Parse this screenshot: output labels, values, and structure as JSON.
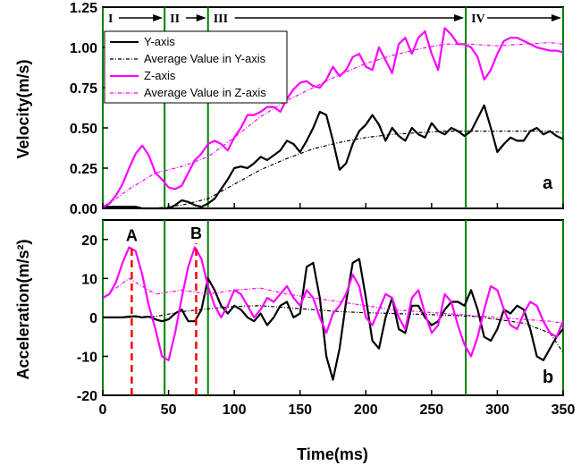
{
  "chart_data": [
    {
      "panel": "a",
      "type": "line",
      "panel_label": "a",
      "ylabel": "Velocity(m/s)",
      "xlim": [
        0,
        350
      ],
      "ylim": [
        0,
        1.25
      ],
      "yticks": [
        "0.00",
        "0.25",
        "0.50",
        "0.75",
        "1.00",
        "1.25"
      ],
      "legend": {
        "position": "upper-left",
        "entries": [
          "Y-axis",
          "Average Value in Y-axis",
          "Z-axis",
          "Average Value in Z-axis"
        ]
      },
      "series": [
        {
          "name": "Y-axis",
          "color": "#000000",
          "style": "solid",
          "x": [
            0,
            5,
            10,
            15,
            20,
            25,
            30,
            35,
            40,
            45,
            50,
            55,
            60,
            65,
            70,
            75,
            80,
            85,
            90,
            95,
            100,
            105,
            110,
            115,
            120,
            125,
            130,
            135,
            140,
            145,
            150,
            155,
            160,
            165,
            170,
            175,
            180,
            185,
            190,
            195,
            200,
            205,
            210,
            215,
            220,
            225,
            230,
            235,
            240,
            245,
            250,
            255,
            260,
            265,
            270,
            275,
            280,
            285,
            290,
            295,
            300,
            305,
            310,
            315,
            320,
            325,
            330,
            335,
            340,
            345,
            350
          ],
          "y": [
            0.01,
            0.01,
            0.01,
            0.01,
            0.01,
            0.01,
            0.0,
            0.0,
            0.0,
            0.0,
            0.0,
            0.02,
            0.05,
            0.04,
            0.02,
            0.01,
            0.03,
            0.06,
            0.12,
            0.18,
            0.25,
            0.26,
            0.25,
            0.28,
            0.32,
            0.3,
            0.33,
            0.36,
            0.42,
            0.4,
            0.35,
            0.42,
            0.5,
            0.6,
            0.58,
            0.42,
            0.24,
            0.28,
            0.4,
            0.48,
            0.52,
            0.58,
            0.52,
            0.42,
            0.5,
            0.45,
            0.42,
            0.5,
            0.46,
            0.44,
            0.53,
            0.48,
            0.46,
            0.5,
            0.48,
            0.45,
            0.48,
            0.56,
            0.64,
            0.5,
            0.35,
            0.4,
            0.44,
            0.42,
            0.42,
            0.48,
            0.5,
            0.46,
            0.48,
            0.45,
            0.43
          ]
        },
        {
          "name": "Average Value in Y-axis",
          "color": "#000000",
          "style": "dashed",
          "x": [
            0,
            20,
            40,
            60,
            80,
            100,
            120,
            140,
            160,
            180,
            200,
            220,
            240,
            260,
            280,
            300,
            320,
            340,
            350
          ],
          "y": [
            0.0,
            0.0,
            0.0,
            0.02,
            0.06,
            0.15,
            0.24,
            0.31,
            0.37,
            0.41,
            0.44,
            0.46,
            0.47,
            0.48,
            0.48,
            0.48,
            0.48,
            0.48,
            0.47
          ]
        },
        {
          "name": "Z-axis",
          "color": "#ff00ff",
          "style": "solid",
          "x": [
            0,
            5,
            10,
            15,
            20,
            25,
            30,
            35,
            40,
            45,
            50,
            55,
            60,
            65,
            70,
            75,
            80,
            85,
            90,
            95,
            100,
            105,
            110,
            115,
            120,
            125,
            130,
            135,
            140,
            145,
            150,
            155,
            160,
            165,
            170,
            175,
            180,
            185,
            190,
            195,
            200,
            205,
            210,
            215,
            220,
            225,
            230,
            235,
            240,
            245,
            250,
            255,
            260,
            265,
            270,
            275,
            280,
            285,
            290,
            295,
            300,
            305,
            310,
            315,
            320,
            325,
            330,
            335,
            340,
            345,
            350
          ],
          "y": [
            0.01,
            0.03,
            0.08,
            0.15,
            0.25,
            0.34,
            0.39,
            0.33,
            0.22,
            0.18,
            0.13,
            0.12,
            0.14,
            0.22,
            0.3,
            0.34,
            0.4,
            0.42,
            0.4,
            0.36,
            0.44,
            0.5,
            0.58,
            0.58,
            0.6,
            0.63,
            0.63,
            0.6,
            0.68,
            0.74,
            0.78,
            0.79,
            0.76,
            0.75,
            0.8,
            0.88,
            0.82,
            0.86,
            0.94,
            0.96,
            0.88,
            0.86,
            1.0,
            0.92,
            0.84,
            1.02,
            1.06,
            0.96,
            1.06,
            1.1,
            0.96,
            0.86,
            1.12,
            1.08,
            1.02,
            1.02,
            1.0,
            0.94,
            0.8,
            0.86,
            0.96,
            1.04,
            1.06,
            1.06,
            1.04,
            1.02,
            1.0,
            0.99,
            0.98,
            0.98,
            0.97
          ]
        },
        {
          "name": "Average Value in Z-axis",
          "color": "#ff00ff",
          "style": "dashed",
          "x": [
            0,
            20,
            40,
            60,
            80,
            100,
            120,
            140,
            160,
            180,
            200,
            220,
            240,
            260,
            280,
            300,
            320,
            340,
            350
          ],
          "y": [
            0.0,
            0.12,
            0.22,
            0.26,
            0.32,
            0.44,
            0.57,
            0.67,
            0.75,
            0.83,
            0.9,
            0.95,
            0.99,
            1.02,
            1.02,
            1.01,
            1.02,
            1.03,
            1.02
          ]
        }
      ]
    },
    {
      "panel": "b",
      "type": "line",
      "panel_label": "b",
      "xlabel": "Time(ms)",
      "ylabel": "Acceleration(m/s²)",
      "xlim": [
        0,
        350
      ],
      "ylim": [
        -20,
        25
      ],
      "xticks": [
        "0",
        "50",
        "100",
        "150",
        "200",
        "250",
        "300",
        "350"
      ],
      "yticks": [
        "-20",
        "-10",
        "0",
        "10",
        "20"
      ],
      "series": [
        {
          "name": "Y-axis",
          "color": "#000000",
          "style": "solid",
          "x": [
            0,
            5,
            10,
            15,
            20,
            25,
            30,
            35,
            40,
            45,
            50,
            55,
            60,
            65,
            70,
            75,
            80,
            85,
            90,
            95,
            100,
            105,
            110,
            115,
            120,
            125,
            130,
            135,
            140,
            145,
            150,
            155,
            160,
            165,
            170,
            175,
            180,
            185,
            190,
            195,
            200,
            205,
            210,
            215,
            220,
            225,
            230,
            235,
            240,
            245,
            250,
            255,
            260,
            265,
            270,
            275,
            280,
            285,
            290,
            295,
            300,
            305,
            310,
            315,
            320,
            325,
            330,
            335,
            340,
            345,
            350
          ],
          "y": [
            0.0,
            0.0,
            0.0,
            0.0,
            0.2,
            0.3,
            0.0,
            0.2,
            -0.5,
            -1.0,
            -0.5,
            1.0,
            2.0,
            -1.0,
            -1.0,
            2.0,
            10.0,
            7.0,
            3.0,
            1.0,
            3.0,
            2.0,
            0.0,
            -1.0,
            1.0,
            -2.0,
            0.0,
            3.0,
            4.0,
            0.0,
            1.0,
            13.0,
            14.0,
            5.0,
            -10.0,
            -16.0,
            -8.0,
            4.0,
            14.0,
            15.0,
            5.0,
            -6.0,
            -8.0,
            0.0,
            5.0,
            -3.0,
            -4.0,
            3.0,
            3.0,
            0.0,
            -2.0,
            -1.0,
            2.0,
            4.0,
            4.0,
            3.0,
            7.0,
            2.0,
            -5.0,
            -6.0,
            -3.0,
            2.0,
            1.0,
            3.0,
            2.0,
            -3.0,
            -10.0,
            -11.0,
            -8.0,
            -5.0,
            -3.0
          ]
        },
        {
          "name": "Average Value in Y-axis",
          "color": "#000000",
          "style": "dashed",
          "x": [
            0,
            20,
            40,
            60,
            80,
            100,
            120,
            140,
            160,
            180,
            200,
            220,
            240,
            260,
            280,
            300,
            320,
            340,
            350
          ],
          "y": [
            0.0,
            0.0,
            0.2,
            1.5,
            2.2,
            2.8,
            3.0,
            2.5,
            2.0,
            1.5,
            1.2,
            1.0,
            0.8,
            0.6,
            0.3,
            -0.5,
            -1.5,
            -4.0,
            -9.0
          ]
        },
        {
          "name": "Z-axis",
          "color": "#ff00ff",
          "style": "solid",
          "x": [
            0,
            5,
            10,
            15,
            20,
            25,
            30,
            35,
            40,
            45,
            50,
            55,
            60,
            65,
            70,
            75,
            80,
            85,
            90,
            95,
            100,
            105,
            110,
            115,
            120,
            125,
            130,
            135,
            140,
            145,
            150,
            155,
            160,
            165,
            170,
            175,
            180,
            185,
            190,
            195,
            200,
            205,
            210,
            215,
            220,
            225,
            230,
            235,
            240,
            245,
            250,
            255,
            260,
            265,
            270,
            275,
            280,
            285,
            290,
            295,
            300,
            305,
            310,
            315,
            320,
            325,
            330,
            335,
            340,
            345,
            350
          ],
          "y": [
            5.0,
            6.0,
            9.0,
            14.0,
            18.0,
            17.0,
            11.0,
            3.0,
            -3.0,
            -10.0,
            -11.0,
            -4.0,
            5.0,
            13.0,
            18.0,
            15.0,
            8.0,
            3.0,
            0.0,
            3.0,
            7.0,
            6.0,
            3.0,
            0.0,
            2.0,
            5.0,
            4.0,
            6.0,
            8.0,
            5.0,
            3.0,
            7.0,
            5.0,
            0.0,
            -4.0,
            1.0,
            3.0,
            6.0,
            11.0,
            8.0,
            0.0,
            -2.0,
            2.0,
            6.0,
            5.0,
            0.0,
            -3.0,
            5.0,
            7.0,
            1.0,
            -4.0,
            -2.0,
            6.0,
            4.0,
            -2.0,
            -7.0,
            -10.0,
            -5.0,
            2.0,
            8.0,
            7.0,
            2.0,
            -2.0,
            -3.0,
            1.0,
            4.0,
            3.0,
            -1.0,
            -4.0,
            -5.0,
            -1.0
          ]
        },
        {
          "name": "Average Value in Z-axis",
          "color": "#ff00ff",
          "style": "dashed",
          "x": [
            0,
            20,
            40,
            60,
            80,
            100,
            120,
            140,
            160,
            180,
            200,
            220,
            240,
            260,
            280,
            300,
            320,
            340,
            350
          ],
          "y": [
            5.0,
            10.0,
            6.0,
            7.0,
            6.0,
            7.0,
            7.5,
            6.0,
            5.0,
            4.0,
            3.0,
            2.0,
            1.5,
            1.0,
            0.5,
            0.0,
            -0.5,
            -1.0,
            -1.5
          ]
        }
      ]
    }
  ],
  "phases": [
    {
      "label": "I",
      "start": 0,
      "end": 47
    },
    {
      "label": "II",
      "start": 47,
      "end": 80
    },
    {
      "label": "III",
      "start": 80,
      "end": 276
    },
    {
      "label": "IV",
      "start": 276,
      "end": 350
    }
  ],
  "phase_boundaries": [
    0,
    47,
    80,
    276,
    350
  ],
  "phase_line_color": "#008000",
  "markers": [
    {
      "label": "A",
      "x": 22,
      "y": 18.5
    },
    {
      "label": "B",
      "x": 71,
      "y": 19.0
    }
  ],
  "marker_color": "#ff0000"
}
